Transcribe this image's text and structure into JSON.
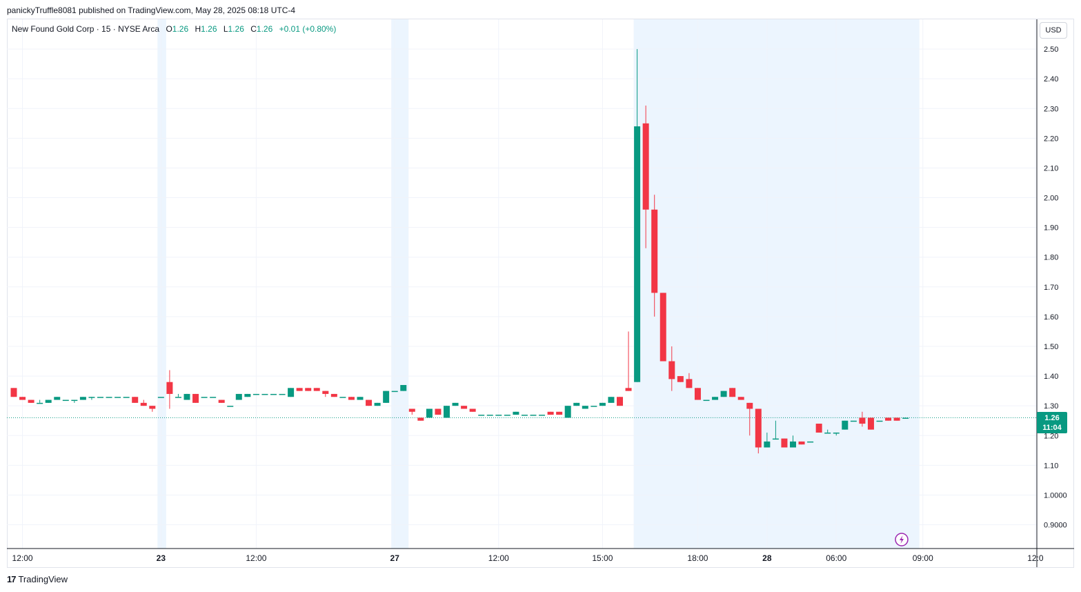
{
  "header": {
    "publish_line": "panickyTruffle8081 published on TradingView.com, May 28, 2025 08:18 UTC-4"
  },
  "legend": {
    "symbol": "New Found Gold Corp · 15 · NYSE Arca",
    "open_label": "O",
    "open": "1.26",
    "high_label": "H",
    "high": "1.26",
    "low_label": "L",
    "low": "1.26",
    "close_label": "C",
    "close": "1.26",
    "change": "+0.01 (+0.80%)"
  },
  "currency": "USD",
  "last_price": {
    "price": "1.26",
    "countdown": "11:04"
  },
  "footer": {
    "brand": "TradingView"
  },
  "colors": {
    "up": "#089981",
    "down": "#f23645",
    "session_shade": "#ecf5fe",
    "grid": "#f0f3fa",
    "last_price_line": "#089981",
    "alert_icon": "#9c27b0"
  },
  "icons": {
    "alert": "lightning-bolt-icon",
    "brand": "tradingview-logo-icon"
  },
  "chart_data": {
    "type": "candlestick",
    "title": "New Found Gold Corp · 15 · NYSE Arca",
    "ylim": [
      0.82,
      2.6
    ],
    "y_ticks": [
      "2.50",
      "2.40",
      "2.30",
      "2.20",
      "2.10",
      "2.00",
      "1.90",
      "1.80",
      "1.70",
      "1.60",
      "1.50",
      "1.40",
      "1.30",
      "1.20",
      "1.10",
      "1.0000",
      "0.9000"
    ],
    "y_tick_values": [
      2.5,
      2.4,
      2.3,
      2.2,
      2.1,
      2.0,
      1.9,
      1.8,
      1.7,
      1.6,
      1.5,
      1.4,
      1.3,
      1.2,
      1.1,
      1.0,
      0.9
    ],
    "x_ticks": [
      "12:00",
      "23",
      "12:00",
      "27",
      "12:00",
      "15:00",
      "18:00",
      "28",
      "06:00",
      "09:00",
      "12:0"
    ],
    "x_tick_bold": [
      false,
      true,
      false,
      true,
      false,
      false,
      false,
      true,
      false,
      false,
      false
    ],
    "x_tick_bar_index": [
      1,
      17,
      28,
      44,
      56,
      68,
      79,
      87,
      95,
      105,
      118
    ],
    "session_shades_bar_index": [
      [
        16.6,
        17.6
      ],
      [
        43.6,
        45.6
      ],
      [
        71.6,
        104.6
      ]
    ],
    "last_price": 1.26,
    "candles": [
      {
        "o": 1.36,
        "h": 1.36,
        "l": 1.33,
        "c": 1.33
      },
      {
        "o": 1.33,
        "h": 1.33,
        "l": 1.32,
        "c": 1.32
      },
      {
        "o": 1.32,
        "h": 1.32,
        "l": 1.31,
        "c": 1.31
      },
      {
        "o": 1.31,
        "h": 1.32,
        "l": 1.31,
        "c": 1.31
      },
      {
        "o": 1.31,
        "h": 1.32,
        "l": 1.31,
        "c": 1.32
      },
      {
        "o": 1.32,
        "h": 1.33,
        "l": 1.32,
        "c": 1.33
      },
      {
        "o": 1.32,
        "h": 1.32,
        "l": 1.32,
        "c": 1.32
      },
      {
        "o": 1.32,
        "h": 1.32,
        "l": 1.31,
        "c": 1.32
      },
      {
        "o": 1.32,
        "h": 1.33,
        "l": 1.32,
        "c": 1.33
      },
      {
        "o": 1.33,
        "h": 1.33,
        "l": 1.32,
        "c": 1.33
      },
      {
        "o": 1.33,
        "h": 1.33,
        "l": 1.33,
        "c": 1.33
      },
      {
        "o": 1.33,
        "h": 1.33,
        "l": 1.33,
        "c": 1.33
      },
      {
        "o": 1.33,
        "h": 1.33,
        "l": 1.33,
        "c": 1.33
      },
      {
        "o": 1.33,
        "h": 1.33,
        "l": 1.33,
        "c": 1.33
      },
      {
        "o": 1.33,
        "h": 1.33,
        "l": 1.31,
        "c": 1.31
      },
      {
        "o": 1.31,
        "h": 1.32,
        "l": 1.3,
        "c": 1.3
      },
      {
        "o": 1.3,
        "h": 1.3,
        "l": 1.28,
        "c": 1.29
      },
      {
        "o": 1.33,
        "h": 1.33,
        "l": 1.33,
        "c": 1.33
      },
      {
        "o": 1.38,
        "h": 1.42,
        "l": 1.29,
        "c": 1.34
      },
      {
        "o": 1.33,
        "h": 1.34,
        "l": 1.33,
        "c": 1.33
      },
      {
        "o": 1.32,
        "h": 1.34,
        "l": 1.32,
        "c": 1.34
      },
      {
        "o": 1.34,
        "h": 1.34,
        "l": 1.31,
        "c": 1.31
      },
      {
        "o": 1.33,
        "h": 1.33,
        "l": 1.33,
        "c": 1.33
      },
      {
        "o": 1.33,
        "h": 1.33,
        "l": 1.33,
        "c": 1.33
      },
      {
        "o": 1.32,
        "h": 1.32,
        "l": 1.31,
        "c": 1.31
      },
      {
        "o": 1.3,
        "h": 1.3,
        "l": 1.3,
        "c": 1.3
      },
      {
        "o": 1.32,
        "h": 1.34,
        "l": 1.32,
        "c": 1.34
      },
      {
        "o": 1.33,
        "h": 1.34,
        "l": 1.33,
        "c": 1.34
      },
      {
        "o": 1.34,
        "h": 1.34,
        "l": 1.34,
        "c": 1.34
      },
      {
        "o": 1.34,
        "h": 1.34,
        "l": 1.34,
        "c": 1.34
      },
      {
        "o": 1.34,
        "h": 1.34,
        "l": 1.34,
        "c": 1.34
      },
      {
        "o": 1.34,
        "h": 1.34,
        "l": 1.34,
        "c": 1.34
      },
      {
        "o": 1.33,
        "h": 1.36,
        "l": 1.33,
        "c": 1.36
      },
      {
        "o": 1.36,
        "h": 1.36,
        "l": 1.35,
        "c": 1.35
      },
      {
        "o": 1.36,
        "h": 1.36,
        "l": 1.35,
        "c": 1.35
      },
      {
        "o": 1.36,
        "h": 1.36,
        "l": 1.35,
        "c": 1.35
      },
      {
        "o": 1.35,
        "h": 1.35,
        "l": 1.33,
        "c": 1.34
      },
      {
        "o": 1.34,
        "h": 1.34,
        "l": 1.33,
        "c": 1.33
      },
      {
        "o": 1.33,
        "h": 1.33,
        "l": 1.33,
        "c": 1.33
      },
      {
        "o": 1.33,
        "h": 1.33,
        "l": 1.32,
        "c": 1.32
      },
      {
        "o": 1.32,
        "h": 1.33,
        "l": 1.32,
        "c": 1.33
      },
      {
        "o": 1.32,
        "h": 1.32,
        "l": 1.3,
        "c": 1.3
      },
      {
        "o": 1.3,
        "h": 1.31,
        "l": 1.3,
        "c": 1.31
      },
      {
        "o": 1.31,
        "h": 1.35,
        "l": 1.31,
        "c": 1.35
      },
      {
        "o": 1.35,
        "h": 1.35,
        "l": 1.35,
        "c": 1.35
      },
      {
        "o": 1.35,
        "h": 1.37,
        "l": 1.35,
        "c": 1.37
      },
      {
        "o": 1.29,
        "h": 1.29,
        "l": 1.27,
        "c": 1.28
      },
      {
        "o": 1.26,
        "h": 1.26,
        "l": 1.25,
        "c": 1.25
      },
      {
        "o": 1.26,
        "h": 1.29,
        "l": 1.26,
        "c": 1.29
      },
      {
        "o": 1.29,
        "h": 1.29,
        "l": 1.27,
        "c": 1.27
      },
      {
        "o": 1.26,
        "h": 1.3,
        "l": 1.26,
        "c": 1.3
      },
      {
        "o": 1.3,
        "h": 1.31,
        "l": 1.3,
        "c": 1.31
      },
      {
        "o": 1.3,
        "h": 1.3,
        "l": 1.29,
        "c": 1.29
      },
      {
        "o": 1.29,
        "h": 1.29,
        "l": 1.28,
        "c": 1.28
      },
      {
        "o": 1.27,
        "h": 1.27,
        "l": 1.27,
        "c": 1.27
      },
      {
        "o": 1.27,
        "h": 1.27,
        "l": 1.27,
        "c": 1.27
      },
      {
        "o": 1.27,
        "h": 1.27,
        "l": 1.27,
        "c": 1.27
      },
      {
        "o": 1.27,
        "h": 1.27,
        "l": 1.27,
        "c": 1.27
      },
      {
        "o": 1.27,
        "h": 1.28,
        "l": 1.27,
        "c": 1.28
      },
      {
        "o": 1.27,
        "h": 1.27,
        "l": 1.27,
        "c": 1.27
      },
      {
        "o": 1.27,
        "h": 1.27,
        "l": 1.27,
        "c": 1.27
      },
      {
        "o": 1.27,
        "h": 1.27,
        "l": 1.27,
        "c": 1.27
      },
      {
        "o": 1.28,
        "h": 1.28,
        "l": 1.27,
        "c": 1.27
      },
      {
        "o": 1.28,
        "h": 1.28,
        "l": 1.27,
        "c": 1.27
      },
      {
        "o": 1.26,
        "h": 1.3,
        "l": 1.26,
        "c": 1.3
      },
      {
        "o": 1.3,
        "h": 1.31,
        "l": 1.3,
        "c": 1.31
      },
      {
        "o": 1.29,
        "h": 1.3,
        "l": 1.29,
        "c": 1.3
      },
      {
        "o": 1.3,
        "h": 1.3,
        "l": 1.3,
        "c": 1.3
      },
      {
        "o": 1.3,
        "h": 1.31,
        "l": 1.3,
        "c": 1.31
      },
      {
        "o": 1.31,
        "h": 1.33,
        "l": 1.31,
        "c": 1.33
      },
      {
        "o": 1.33,
        "h": 1.33,
        "l": 1.3,
        "c": 1.3
      },
      {
        "o": 1.36,
        "h": 1.55,
        "l": 1.35,
        "c": 1.35
      },
      {
        "o": 1.38,
        "h": 2.5,
        "l": 1.38,
        "c": 2.24
      },
      {
        "o": 2.25,
        "h": 2.31,
        "l": 1.83,
        "c": 1.96
      },
      {
        "o": 1.96,
        "h": 2.01,
        "l": 1.6,
        "c": 1.68
      },
      {
        "o": 1.68,
        "h": 1.68,
        "l": 1.45,
        "c": 1.45
      },
      {
        "o": 1.45,
        "h": 1.5,
        "l": 1.35,
        "c": 1.39
      },
      {
        "o": 1.4,
        "h": 1.4,
        "l": 1.38,
        "c": 1.38
      },
      {
        "o": 1.39,
        "h": 1.41,
        "l": 1.36,
        "c": 1.36
      },
      {
        "o": 1.36,
        "h": 1.36,
        "l": 1.32,
        "c": 1.32
      },
      {
        "o": 1.32,
        "h": 1.32,
        "l": 1.32,
        "c": 1.32
      },
      {
        "o": 1.32,
        "h": 1.33,
        "l": 1.32,
        "c": 1.33
      },
      {
        "o": 1.33,
        "h": 1.35,
        "l": 1.33,
        "c": 1.35
      },
      {
        "o": 1.36,
        "h": 1.36,
        "l": 1.33,
        "c": 1.33
      },
      {
        "o": 1.33,
        "h": 1.33,
        "l": 1.32,
        "c": 1.32
      },
      {
        "o": 1.31,
        "h": 1.31,
        "l": 1.2,
        "c": 1.29
      },
      {
        "o": 1.29,
        "h": 1.29,
        "l": 1.14,
        "c": 1.16
      },
      {
        "o": 1.16,
        "h": 1.21,
        "l": 1.16,
        "c": 1.18
      },
      {
        "o": 1.19,
        "h": 1.25,
        "l": 1.19,
        "c": 1.19
      },
      {
        "o": 1.19,
        "h": 1.19,
        "l": 1.16,
        "c": 1.16
      },
      {
        "o": 1.16,
        "h": 1.2,
        "l": 1.16,
        "c": 1.18
      },
      {
        "o": 1.18,
        "h": 1.18,
        "l": 1.17,
        "c": 1.17
      },
      {
        "o": 1.18,
        "h": 1.18,
        "l": 1.18,
        "c": 1.18
      },
      {
        "o": 1.24,
        "h": 1.24,
        "l": 1.21,
        "c": 1.21
      },
      {
        "o": 1.21,
        "h": 1.22,
        "l": 1.21,
        "c": 1.21
      },
      {
        "o": 1.21,
        "h": 1.21,
        "l": 1.2,
        "c": 1.21
      },
      {
        "o": 1.22,
        "h": 1.25,
        "l": 1.22,
        "c": 1.25
      },
      {
        "o": 1.25,
        "h": 1.25,
        "l": 1.25,
        "c": 1.25
      },
      {
        "o": 1.26,
        "h": 1.28,
        "l": 1.23,
        "c": 1.24
      },
      {
        "o": 1.26,
        "h": 1.26,
        "l": 1.22,
        "c": 1.22
      },
      {
        "o": 1.25,
        "h": 1.25,
        "l": 1.25,
        "c": 1.25
      },
      {
        "o": 1.26,
        "h": 1.26,
        "l": 1.25,
        "c": 1.25
      },
      {
        "o": 1.26,
        "h": 1.26,
        "l": 1.25,
        "c": 1.25
      },
      {
        "o": 1.26,
        "h": 1.26,
        "l": 1.26,
        "c": 1.26
      }
    ]
  }
}
